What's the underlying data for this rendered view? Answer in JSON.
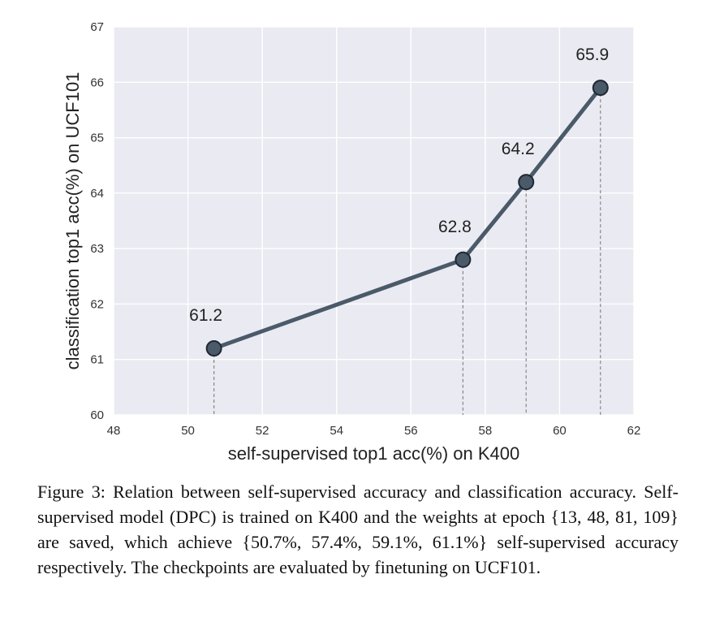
{
  "chart_data": {
    "type": "line",
    "title": "",
    "xlabel": "self-supervised top1 acc(%) on K400",
    "ylabel": "classification top1 acc(%) on UCF101",
    "xlim": [
      48,
      62
    ],
    "ylim": [
      60,
      67
    ],
    "xticks": [
      48,
      50,
      52,
      54,
      56,
      58,
      60,
      62
    ],
    "yticks": [
      60,
      61,
      62,
      63,
      64,
      65,
      66,
      67
    ],
    "x": [
      50.7,
      57.4,
      59.1,
      61.1
    ],
    "y": [
      61.2,
      62.8,
      64.2,
      65.9
    ],
    "point_labels": [
      "61.2",
      "62.8",
      "64.2",
      "65.9"
    ],
    "grid": true,
    "drop_lines": true,
    "colors": {
      "background": "#eaeaf2",
      "grid": "#ffffff",
      "line": "#4a5a69",
      "marker_fill": "#4a5a69",
      "marker_edge": "#1e2833",
      "drop_line": "#888888"
    }
  },
  "caption": {
    "text": "Figure 3:  Relation between self-supervised accuracy and classification accuracy.  Self-supervised model (DPC) is trained on K400 and the weights at epoch {13, 48, 81, 109} are saved, which achieve {50.7%, 57.4%, 59.1%, 61.1%} self-supervised accuracy respectively. The checkpoints are evaluated by finetuning on UCF101."
  }
}
